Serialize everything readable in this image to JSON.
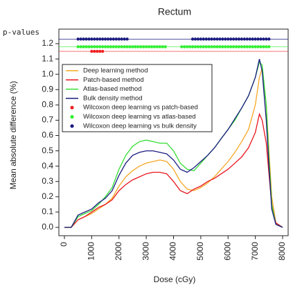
{
  "chart_data": {
    "type": "line",
    "title": "Rectum",
    "x_label": "Dose (cGy)",
    "y_label": "Mean absolute difference (%)",
    "p_value_label": "p-values",
    "x": [
      0,
      250,
      500,
      750,
      1000,
      1250,
      1500,
      1750,
      2000,
      2250,
      2500,
      2750,
      3000,
      3250,
      3500,
      3750,
      4000,
      4250,
      4500,
      4750,
      5000,
      5250,
      5500,
      5750,
      6000,
      6250,
      6500,
      6750,
      7000,
      7150,
      7250,
      7400,
      7500,
      7600,
      7750,
      8000
    ],
    "series": [
      {
        "name": "Deep learning method",
        "color": "#f5a623",
        "values": [
          0,
          0,
          0.05,
          0.07,
          0.09,
          0.12,
          0.15,
          0.19,
          0.27,
          0.33,
          0.37,
          0.4,
          0.42,
          0.43,
          0.44,
          0.43,
          0.38,
          0.3,
          0.25,
          0.24,
          0.26,
          0.29,
          0.33,
          0.38,
          0.43,
          0.49,
          0.56,
          0.64,
          0.8,
          0.98,
          1.04,
          0.8,
          0.5,
          0.2,
          0.03,
          0
        ]
      },
      {
        "name": "Patch-based method",
        "color": "#e8141b",
        "values": [
          0,
          0,
          0.05,
          0.07,
          0.1,
          0.13,
          0.15,
          0.18,
          0.24,
          0.28,
          0.31,
          0.33,
          0.35,
          0.36,
          0.36,
          0.35,
          0.3,
          0.24,
          0.22,
          0.25,
          0.27,
          0.3,
          0.32,
          0.35,
          0.38,
          0.42,
          0.46,
          0.52,
          0.62,
          0.74,
          0.7,
          0.55,
          0.35,
          0.15,
          0.03,
          0
        ]
      },
      {
        "name": "Atlas-based method",
        "color": "#33dd33",
        "values": [
          0,
          0,
          0.07,
          0.09,
          0.11,
          0.15,
          0.2,
          0.26,
          0.38,
          0.47,
          0.53,
          0.56,
          0.57,
          0.56,
          0.55,
          0.55,
          0.5,
          0.42,
          0.38,
          0.37,
          0.42,
          0.47,
          0.52,
          0.58,
          0.64,
          0.7,
          0.78,
          0.86,
          0.98,
          1.08,
          1.06,
          0.8,
          0.45,
          0.15,
          0.02,
          0
        ]
      },
      {
        "name": "Bulk density method",
        "color": "#1a1a80",
        "values": [
          0,
          0,
          0.08,
          0.1,
          0.12,
          0.16,
          0.19,
          0.24,
          0.34,
          0.42,
          0.47,
          0.49,
          0.5,
          0.5,
          0.49,
          0.48,
          0.44,
          0.38,
          0.36,
          0.39,
          0.43,
          0.47,
          0.52,
          0.58,
          0.64,
          0.71,
          0.78,
          0.86,
          0.98,
          1.1,
          1.02,
          0.7,
          0.4,
          0.12,
          0.02,
          0
        ]
      },
      {
        "name": "Wilcoxon deep learning vs patch-based",
        "color": "#ee2222",
        "marker": "point",
        "x": [
          1000,
          1100,
          1200,
          1300,
          1400
        ],
        "values": [
          1.15,
          1.15,
          1.15,
          1.15,
          1.15
        ]
      },
      {
        "name": "Wilcoxon deep learning vs atlas-based",
        "color": "#33ee33",
        "marker": "point",
        "x": [
          500,
          600,
          700,
          800,
          900,
          1000,
          1100,
          1200,
          1300,
          1400,
          1500,
          1600,
          1700,
          1800,
          1900,
          2000,
          2100,
          2200,
          2300,
          2400,
          2500,
          2600,
          2700,
          2800,
          2900,
          3000,
          3100,
          3200,
          3300,
          3400,
          3500,
          3600,
          3700,
          4300,
          4400,
          4500,
          4600,
          4700,
          4800,
          4900,
          5000,
          5100,
          5200,
          5300,
          5400,
          5500,
          5600,
          5700,
          5800,
          5900,
          6000,
          6100,
          6200,
          6300,
          6400,
          6500,
          6600,
          6700,
          6800,
          6900,
          7000,
          7100,
          7200,
          7300,
          7400,
          7500
        ],
        "values": [
          1.18,
          1.18,
          1.18,
          1.18,
          1.18,
          1.18,
          1.18,
          1.18,
          1.18,
          1.18,
          1.18,
          1.18,
          1.18,
          1.18,
          1.18,
          1.18,
          1.18,
          1.18,
          1.18,
          1.18,
          1.18,
          1.18,
          1.18,
          1.18,
          1.18,
          1.18,
          1.18,
          1.18,
          1.18,
          1.18,
          1.18,
          1.18,
          1.18,
          1.18,
          1.18,
          1.18,
          1.18,
          1.18,
          1.18,
          1.18,
          1.18,
          1.18,
          1.18,
          1.18,
          1.18,
          1.18,
          1.18,
          1.18,
          1.18,
          1.18,
          1.18,
          1.18,
          1.18,
          1.18,
          1.18,
          1.18,
          1.18,
          1.18,
          1.18,
          1.18,
          1.18,
          1.18,
          1.18,
          1.18,
          1.18,
          1.18
        ]
      },
      {
        "name": "Wilcoxon deep learning vs bulk density",
        "color": "#1a1a80",
        "marker": "point",
        "x": [
          500,
          600,
          700,
          800,
          900,
          1000,
          1100,
          1200,
          1300,
          1400,
          1500,
          1600,
          1700,
          1800,
          1900,
          2000,
          2100,
          2200,
          2300,
          4700,
          4800,
          4900,
          5000,
          5100,
          5200,
          5300,
          5400,
          5500,
          5600,
          5700,
          5800,
          5900,
          6000,
          6100,
          6200,
          6300,
          6400,
          6500,
          6600,
          6700,
          6800,
          6900,
          7000,
          7100,
          7200,
          7300,
          7400,
          7500
        ],
        "values": [
          1.23,
          1.23,
          1.23,
          1.23,
          1.23,
          1.23,
          1.23,
          1.23,
          1.23,
          1.23,
          1.23,
          1.23,
          1.23,
          1.23,
          1.23,
          1.23,
          1.23,
          1.23,
          1.23,
          1.23,
          1.23,
          1.23,
          1.23,
          1.23,
          1.23,
          1.23,
          1.23,
          1.23,
          1.23,
          1.23,
          1.23,
          1.23,
          1.23,
          1.23,
          1.23,
          1.23,
          1.23,
          1.23,
          1.23,
          1.23,
          1.23,
          1.23,
          1.23,
          1.23,
          1.23,
          1.23,
          1.23,
          1.23
        ]
      }
    ],
    "xlim": [
      0,
      8000
    ],
    "xticks": [
      0,
      1000,
      2000,
      3000,
      4000,
      5000,
      6000,
      7000,
      8000
    ],
    "ylim": [
      0,
      1.2
    ],
    "yticks": [
      {
        "value": 0,
        "label": "0.0"
      },
      0.1,
      0.2,
      0.3,
      0.4,
      0.5,
      0.6,
      0.7,
      0.8,
      0.9,
      {
        "value": 1,
        "label": "1.0"
      },
      1.1,
      1.2
    ],
    "grid": false,
    "legend": "upper left"
  }
}
